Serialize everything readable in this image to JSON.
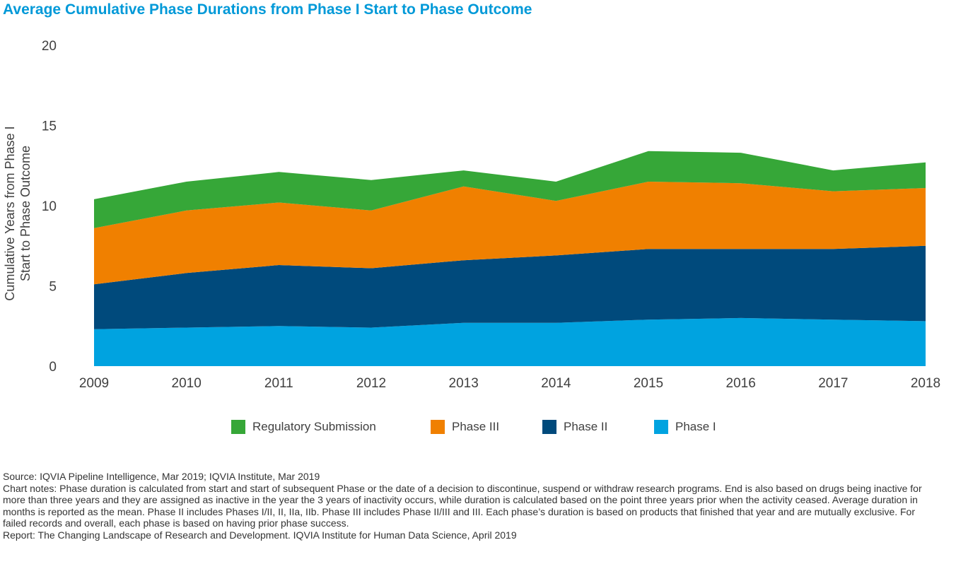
{
  "title": "Average Cumulative Phase Durations from Phase I Start to Phase Outcome",
  "chart_data": {
    "type": "area",
    "stacked": true,
    "x": [
      "2009",
      "2010",
      "2011",
      "2012",
      "2013",
      "2014",
      "2015",
      "2016",
      "2017",
      "2018"
    ],
    "ylabel_line1": "Cumulative Years from Phase I",
    "ylabel_line2": "Start to Phase Outcome",
    "ylim": [
      0,
      20
    ],
    "yticks": [
      "0",
      "5",
      "10",
      "15",
      "20"
    ],
    "grid": false,
    "legend_position": "bottom",
    "series": [
      {
        "name": "Phase I",
        "color": "#00a3e0",
        "values": [
          2.3,
          2.4,
          2.5,
          2.4,
          2.7,
          2.7,
          2.9,
          3.0,
          2.9,
          2.8
        ]
      },
      {
        "name": "Phase II",
        "color": "#004a7c",
        "values": [
          2.8,
          3.4,
          3.8,
          3.7,
          3.9,
          4.2,
          4.4,
          4.3,
          4.4,
          4.7
        ]
      },
      {
        "name": "Phase III",
        "color": "#f08000",
        "values": [
          3.5,
          3.9,
          3.9,
          3.6,
          4.6,
          3.4,
          4.2,
          4.1,
          3.6,
          3.6
        ]
      },
      {
        "name": "Regulatory Submission",
        "color": "#36a738",
        "values": [
          1.8,
          1.8,
          1.9,
          1.9,
          1.0,
          1.2,
          1.9,
          1.9,
          1.3,
          1.6
        ]
      }
    ],
    "legend_order": [
      "Regulatory Submission",
      "Phase III",
      "Phase II",
      "Phase I"
    ]
  },
  "notes": {
    "source": "Source: IQVIA Pipeline Intelligence, Mar 2019; IQVIA Institute, Mar 2019",
    "chart_notes": "Chart notes: Phase duration is calculated from start and start of subsequent Phase or the date of a decision to discontinue, suspend or withdraw research programs. End is also based on drugs being inactive for more than three years and they are assigned as inactive in the year the 3 years of inactivity occurs, while duration is calculated based on the point three years prior when the activity ceased. Average duration in months is reported as the mean. Phase II includes Phases I/II, II, IIa, IIb. Phase III includes Phase II/III and III. Each phase’s duration is based on products that finished that year and are mutually exclusive. For failed records and overall, each phase is based on having prior phase success.",
    "report": "Report: The Changing Landscape of Research and Development. IQVIA Institute for Human Data Science, April 2019"
  }
}
